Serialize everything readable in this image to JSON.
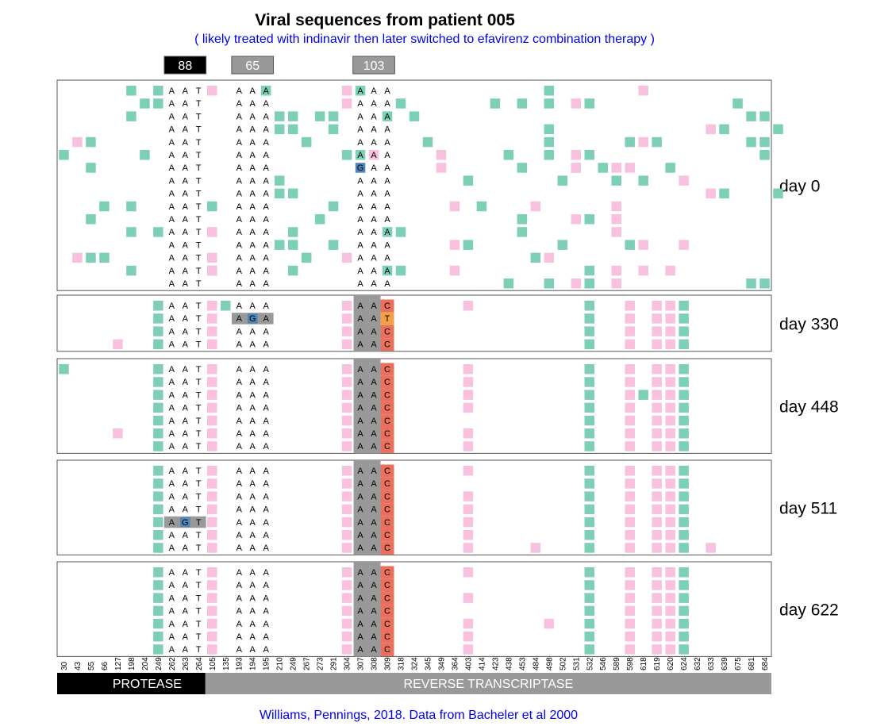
{
  "title": "Viral sequences from patient 005",
  "subtitle": "( likely treated with indinavir then later switched to efavirenz combination therapy )",
  "credit": "Williams, Pennings, 2018. Data from Bacheler et al 2000",
  "colors": {
    "mutation_teal": "#7ecfb8",
    "mutation_pink": "#f7c1df",
    "codon_bg": "#999999",
    "header_88": "#000000",
    "header_gray": "#999999",
    "mut_blue": "#4f86b8",
    "res_C": "#e8705c",
    "res_T": "#f4a04a",
    "protease": "#000000",
    "rt": "#999999"
  },
  "chart_data": {
    "type": "table",
    "positions": [
      "30",
      "43",
      "55",
      "66",
      "127",
      "198",
      "204",
      "249",
      "262",
      "263",
      "264",
      "105",
      "135",
      "193",
      "194",
      "195",
      "210",
      "249",
      "267",
      "273",
      "291",
      "304",
      "307",
      "308",
      "309",
      "318",
      "324",
      "345",
      "349",
      "364",
      "403",
      "414",
      "423",
      "438",
      "453",
      "484",
      "498",
      "502",
      "531",
      "532",
      "546",
      "589",
      "598",
      "618",
      "619",
      "620",
      "624",
      "632",
      "633",
      "639",
      "675",
      "681",
      "684"
    ],
    "codon_headers": [
      {
        "label": "88",
        "positions": [
          "262",
          "263",
          "264"
        ],
        "color": "#000000"
      },
      {
        "label": "65",
        "positions": [
          "193",
          "194",
          "195"
        ],
        "color": "#999999"
      },
      {
        "label": "103",
        "positions": [
          "307",
          "308",
          "309"
        ],
        "color": "#999999"
      }
    ],
    "regions": [
      {
        "label": "PROTEASE",
        "from": "30",
        "to": "264"
      },
      {
        "label": "REVERSE TRANSCRIPTASE",
        "from": "105",
        "to": "684"
      }
    ],
    "codons": {
      "88": [
        "A",
        "A",
        "T"
      ],
      "65": [
        "A",
        "A",
        "A"
      ],
      "103": [
        "A",
        "A",
        "A"
      ]
    },
    "panels": [
      {
        "label": "day 0",
        "nseq": 16,
        "codon103_mut": false,
        "teal": [
          [
            5,
            7,
            15,
            22,
            36
          ],
          [
            6,
            7,
            25,
            32,
            34,
            36,
            39,
            50
          ],
          [
            5,
            16,
            17,
            19,
            20,
            24,
            26,
            51,
            52
          ],
          [
            16,
            17,
            20,
            36,
            49,
            53
          ],
          [
            2,
            18,
            27,
            36,
            42,
            44,
            51,
            52
          ],
          [
            0,
            6,
            21,
            22,
            33,
            36,
            39,
            52
          ],
          [
            2,
            34,
            38,
            40,
            45
          ],
          [
            16,
            30,
            37,
            41,
            43
          ],
          [
            16,
            17,
            49,
            53
          ],
          [
            3,
            5,
            11,
            20,
            31
          ],
          [
            2,
            19,
            34,
            39
          ],
          [
            5,
            7,
            17,
            24,
            25,
            34
          ],
          [
            16,
            17,
            20,
            30,
            37,
            42
          ],
          [
            2,
            3,
            18,
            35
          ],
          [
            5,
            11,
            17,
            24,
            25,
            39
          ],
          [
            33,
            36,
            39,
            51,
            52
          ]
        ],
        "pink": [
          [
            11,
            21,
            43
          ],
          [
            21,
            38
          ],
          [],
          [
            48
          ],
          [
            1,
            43
          ],
          [
            23,
            28,
            38
          ],
          [
            28,
            38,
            41,
            42
          ],
          [
            46
          ],
          [
            48
          ],
          [
            29,
            35,
            41
          ],
          [
            38,
            41
          ],
          [
            11,
            41
          ],
          [
            29,
            43,
            46
          ],
          [
            1,
            11,
            21,
            36
          ],
          [
            11,
            29,
            41,
            43,
            45
          ],
          [
            38,
            41
          ]
        ],
        "muts": [
          {
            "row": 6,
            "pos": "307",
            "letter": "G"
          }
        ]
      },
      {
        "label": "day 330",
        "nseq": 4,
        "codon103_mut": true,
        "codon103_third": [
          "C",
          "T",
          "C",
          "C"
        ],
        "teal": [
          [
            7,
            12,
            39,
            46
          ],
          [
            7,
            39,
            46
          ],
          [
            7,
            39,
            46
          ],
          [
            7,
            39,
            46
          ]
        ],
        "pink": [
          [
            11,
            21,
            30,
            42,
            44,
            45
          ],
          [
            11,
            21,
            42,
            44,
            45
          ],
          [
            11,
            21,
            42,
            44,
            45
          ],
          [
            4,
            11,
            21,
            42,
            44,
            45
          ]
        ],
        "muts": [
          {
            "row": 1,
            "pos": "194",
            "letter": "G"
          }
        ],
        "gray_codons": [
          {
            "row": 1,
            "codon": "65"
          }
        ]
      },
      {
        "label": "day 448",
        "nseq": 7,
        "codon103_mut": true,
        "codon103_third": [
          "C",
          "C",
          "C",
          "C",
          "C",
          "C",
          "C"
        ],
        "teal": [
          [
            0,
            7,
            39,
            46
          ],
          [
            7,
            39,
            46
          ],
          [
            7,
            39,
            43,
            46
          ],
          [
            7,
            39,
            46
          ],
          [
            7,
            39,
            46
          ],
          [
            7,
            39,
            46
          ],
          [
            7,
            39,
            46
          ]
        ],
        "pink": [
          [
            11,
            21,
            30,
            42,
            44,
            45
          ],
          [
            11,
            21,
            30,
            42,
            44,
            45
          ],
          [
            11,
            21,
            30,
            42,
            44,
            45
          ],
          [
            11,
            21,
            30,
            42,
            44,
            45
          ],
          [
            11,
            21,
            42,
            44,
            45
          ],
          [
            4,
            11,
            21,
            30,
            42,
            44,
            45
          ],
          [
            11,
            21,
            30,
            42,
            44,
            45
          ]
        ],
        "muts": []
      },
      {
        "label": "day 511",
        "nseq": 7,
        "codon103_mut": true,
        "codon103_third": [
          "C",
          "C",
          "C",
          "C",
          "C",
          "C",
          "C"
        ],
        "teal": [
          [
            7,
            39,
            46
          ],
          [
            7,
            39,
            46
          ],
          [
            7,
            39,
            46
          ],
          [
            7,
            39,
            46
          ],
          [
            7,
            39,
            46
          ],
          [
            7,
            39,
            46
          ],
          [
            7,
            39,
            46
          ]
        ],
        "pink": [
          [
            11,
            21,
            30,
            42,
            44,
            45
          ],
          [
            11,
            21,
            42,
            44,
            45
          ],
          [
            11,
            21,
            30,
            42,
            44,
            45
          ],
          [
            11,
            21,
            30,
            42,
            44,
            45
          ],
          [
            11,
            21,
            30,
            42,
            44,
            45
          ],
          [
            11,
            21,
            30,
            42,
            44,
            45
          ],
          [
            11,
            21,
            30,
            35,
            42,
            44,
            45,
            48
          ]
        ],
        "muts": [
          {
            "row": 4,
            "pos": "263",
            "letter": "G"
          }
        ],
        "gray_codons": [
          {
            "row": 4,
            "codon": "88"
          }
        ]
      },
      {
        "label": "day 622",
        "nseq": 7,
        "codon103_mut": true,
        "codon103_third": [
          "C",
          "C",
          "C",
          "C",
          "C",
          "C",
          "C"
        ],
        "teal": [
          [
            7,
            39,
            46
          ],
          [
            7,
            39,
            46
          ],
          [
            7,
            39,
            46
          ],
          [
            7,
            39,
            46
          ],
          [
            7,
            39,
            46
          ],
          [
            7,
            39,
            46
          ],
          [
            7,
            39,
            46
          ]
        ],
        "pink": [
          [
            11,
            21,
            30,
            42,
            44,
            45
          ],
          [
            11,
            21,
            42,
            44,
            45
          ],
          [
            11,
            21,
            30,
            42,
            44,
            45
          ],
          [
            11,
            21,
            42,
            44,
            45
          ],
          [
            11,
            21,
            30,
            36,
            42,
            44,
            45
          ],
          [
            11,
            21,
            30,
            42,
            44,
            45
          ],
          [
            11,
            21,
            30,
            42,
            44,
            45
          ]
        ],
        "muts": []
      }
    ]
  }
}
